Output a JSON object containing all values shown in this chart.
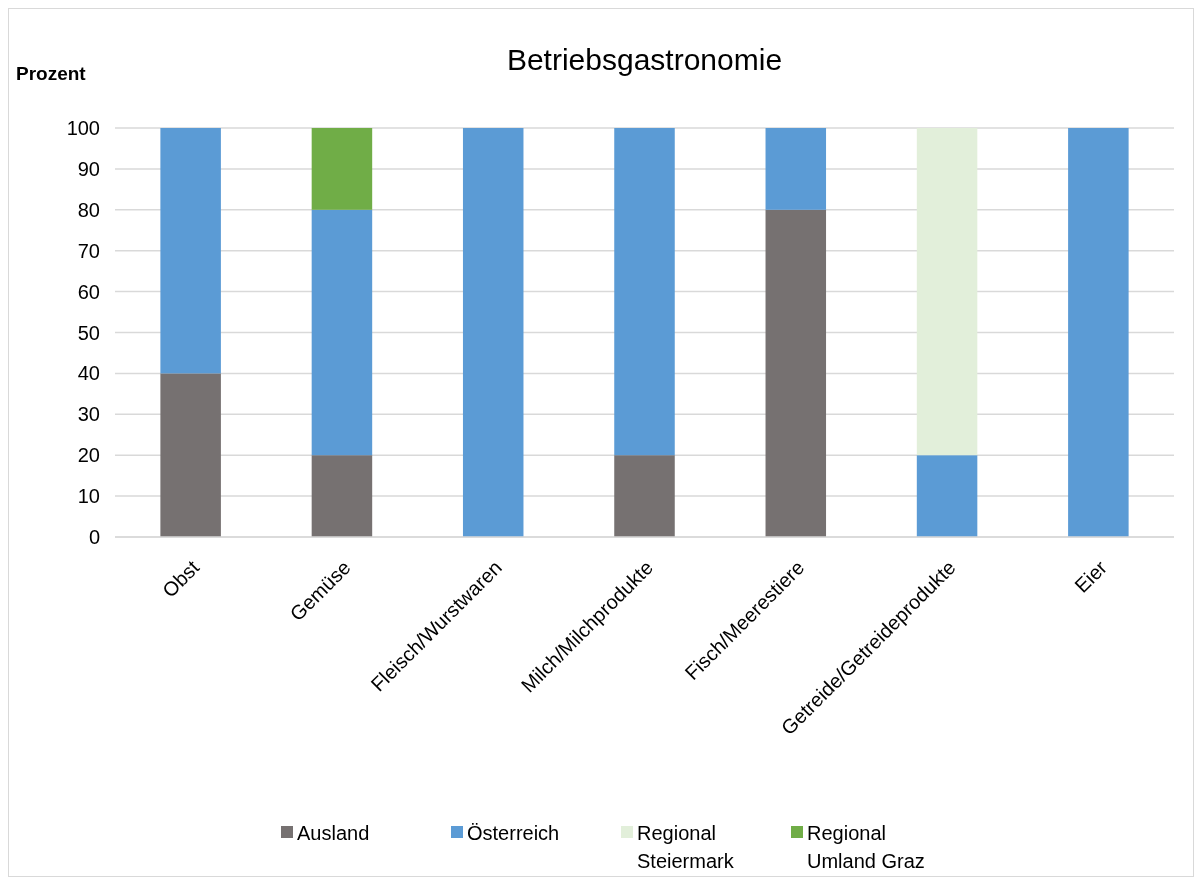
{
  "chart_data": {
    "type": "bar",
    "title": "Betriebsgastronomie",
    "ylabel": "Prozent",
    "stacked": true,
    "categories": [
      "Obst",
      "Gemüse",
      "Fleisch/Wurstwaren",
      "Milch/Milchprodukte",
      "Fisch/Meerestiere",
      "Getreide/Getreideprodukte",
      "Eier"
    ],
    "series": [
      {
        "name": "Ausland",
        "color": "#767171",
        "values": [
          40,
          20,
          0,
          20,
          80,
          0,
          0
        ]
      },
      {
        "name": "Österreich",
        "color": "#5b9bd5",
        "values": [
          60,
          60,
          100,
          80,
          20,
          20,
          100
        ]
      },
      {
        "name": "Regional Steiermark",
        "color": "#e2efda",
        "values": [
          0,
          0,
          0,
          0,
          0,
          80,
          0
        ]
      },
      {
        "name": "Regional Umland Graz",
        "color": "#70ad47",
        "values": [
          0,
          20,
          0,
          0,
          0,
          0,
          0
        ]
      }
    ],
    "ylim": [
      0,
      100
    ],
    "yticks": [
      0,
      10,
      20,
      30,
      40,
      50,
      60,
      70,
      80,
      90,
      100
    ],
    "grid": "y",
    "legend": "bottom"
  }
}
